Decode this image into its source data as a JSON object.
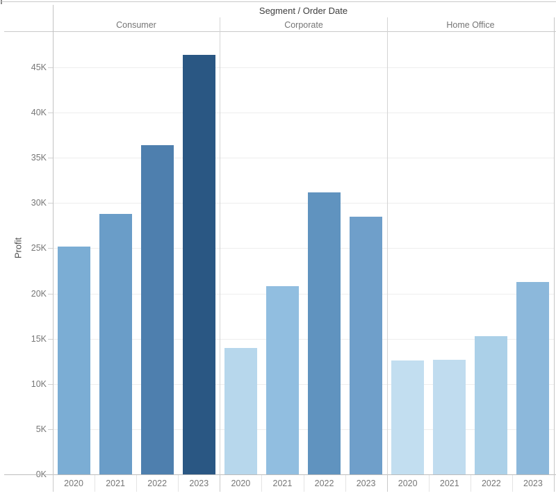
{
  "header": {
    "title": "Segment / Order Date"
  },
  "y_axis": {
    "label": "Profit"
  },
  "colors": {
    "top_border": "#c9c9c9",
    "axis_line": "#c3c3c3",
    "baseline": "#bcbcbc",
    "panel_divider": "#d4d4d4",
    "gridline": "#ededed",
    "tick_mark": "#d0d0d0",
    "header_text": "#757575",
    "tick_text": "#767676",
    "title_text": "#3c3c3c"
  },
  "chart_data": {
    "type": "bar",
    "title": "Segment / Order Date",
    "xlabel": "",
    "ylabel": "Profit",
    "ylim": [
      0,
      49000
    ],
    "ytick_values": [
      0,
      5000,
      10000,
      15000,
      20000,
      25000,
      30000,
      35000,
      40000,
      45000
    ],
    "ytick_labels": [
      "0K",
      "5K",
      "10K",
      "15K",
      "20K",
      "25K",
      "30K",
      "35K",
      "40K",
      "45K"
    ],
    "grid": true,
    "legend": "none",
    "categories": [
      "2020",
      "2021",
      "2022",
      "2023"
    ],
    "panels": [
      {
        "label": "Consumer",
        "values": [
          25200,
          28800,
          36400,
          46400
        ],
        "colors": [
          "#7badd4",
          "#6a9dc8",
          "#4e7fae",
          "#2a5783"
        ]
      },
      {
        "label": "Corporate",
        "values": [
          14000,
          20800,
          31200,
          28500
        ],
        "colors": [
          "#b7d7ec",
          "#91bee0",
          "#6093bf",
          "#6f9fca"
        ]
      },
      {
        "label": "Home Office",
        "values": [
          12600,
          12700,
          15250,
          21300
        ],
        "colors": [
          "#c2def0",
          "#c0dcef",
          "#abd0e8",
          "#8cb8db"
        ]
      }
    ]
  }
}
